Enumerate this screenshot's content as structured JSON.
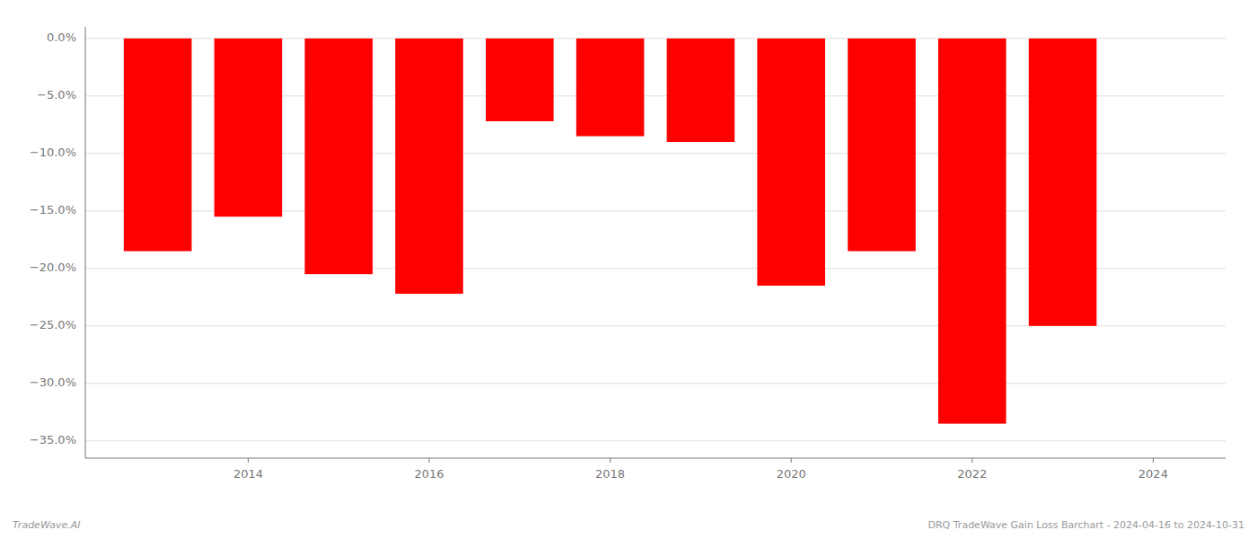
{
  "chart_data": {
    "type": "bar",
    "x": [
      2013,
      2014,
      2015,
      2016,
      2017,
      2018,
      2019,
      2020,
      2021,
      2022,
      2023
    ],
    "values": [
      -18.5,
      -15.5,
      -20.5,
      -22.2,
      -7.2,
      -8.5,
      -9.0,
      -21.5,
      -18.5,
      -33.5,
      -25.0
    ],
    "color": "#ff0000",
    "xlim": [
      2012.2,
      2024.8
    ],
    "xticks": [
      2014,
      2016,
      2018,
      2020,
      2022,
      2024
    ],
    "ylim": [
      -36.5,
      1.0
    ],
    "yticks": [
      {
        "value": 0,
        "label": "0.0%"
      },
      {
        "value": -5,
        "label": "−5.0%"
      },
      {
        "value": -10,
        "label": "−10.0%"
      },
      {
        "value": -15,
        "label": "−15.0%"
      },
      {
        "value": -20,
        "label": "−20.0%"
      },
      {
        "value": -25,
        "label": "−25.0%"
      },
      {
        "value": -30,
        "label": "−30.0%"
      },
      {
        "value": -35,
        "label": "−35.0%"
      }
    ],
    "grid": true,
    "annotations": [
      "TradeWave.AI",
      "DRQ TradeWave Gain Loss Barchart - 2024-04-16 to 2024-10-31"
    ]
  }
}
